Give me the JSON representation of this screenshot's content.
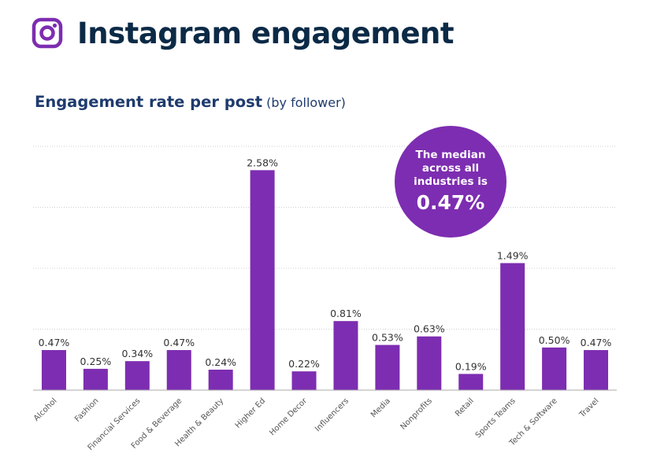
{
  "header": {
    "title": "Instagram engagement",
    "icon": "instagram-icon",
    "icon_color": "#7d2db1"
  },
  "subtitle": {
    "main": "Engagement rate per post",
    "sub": " (by follower)"
  },
  "callout": {
    "text": "The median across all industries is",
    "value": "0.47%"
  },
  "colors": {
    "bar": "#7d2db1",
    "title": "#0b2a46",
    "subtitle": "#1f3b6e",
    "grid": "#cfcfcf"
  },
  "chart_data": {
    "type": "bar",
    "title": "Engagement rate per post (by follower)",
    "categories": [
      "Alcohol",
      "Fashion",
      "Financial Services",
      "Food & Beverage",
      "Health & Beauty",
      "Higher Ed",
      "Home Decor",
      "Influencers",
      "Media",
      "Nonprofits",
      "Retail",
      "Sports Teams",
      "Tech & Software",
      "Travel"
    ],
    "values": [
      0.47,
      0.25,
      0.34,
      0.47,
      0.24,
      2.58,
      0.22,
      0.81,
      0.53,
      0.63,
      0.19,
      1.49,
      0.5,
      0.47
    ],
    "value_labels": [
      "0.47%",
      "0.25%",
      "0.34%",
      "0.47%",
      "0.24%",
      "2.58%",
      "0.22%",
      "0.81%",
      "0.53%",
      "0.63%",
      "0.19%",
      "1.49%",
      "0.50%",
      "0.47%"
    ],
    "ylim": [
      0,
      2.86
    ],
    "grid": true,
    "xlabel": "",
    "ylabel": ""
  }
}
